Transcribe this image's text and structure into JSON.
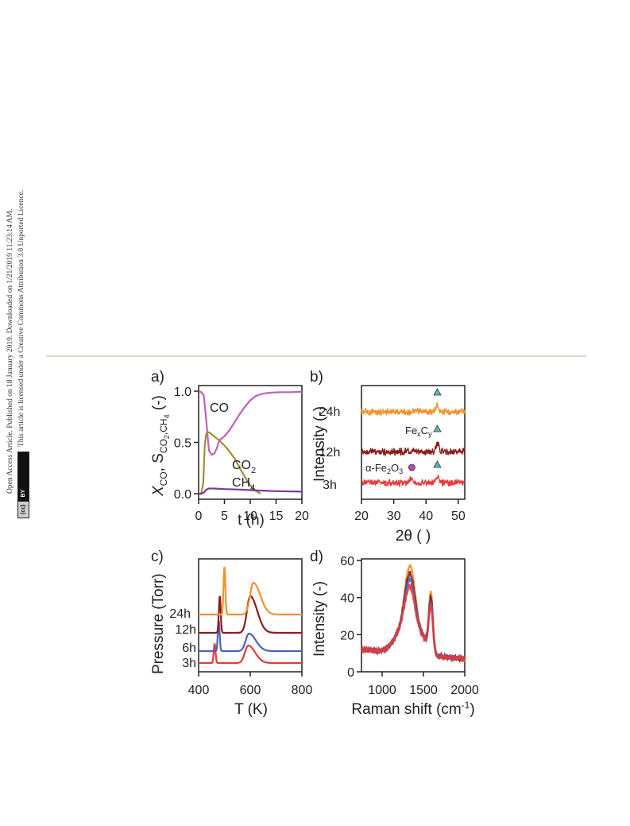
{
  "sidebar": {
    "line1": "Open Access Article. Published on 18 January 2019. Downloaded on 1/21/2019 11:23:14 AM.",
    "line2": "This article is licensed under a Creative Commons Attribution 3.0 Unported Licence.",
    "license_badge_left": "(cc)",
    "license_badge_right": "BY"
  },
  "colors": {
    "CO": "#c060b8",
    "CO2": "#a88a3a",
    "CH4": "#7a3a98",
    "h3": "#e43a3a",
    "h6": "#4a62b8",
    "h12": "#8a1c1c",
    "h24": "#f0922e",
    "xrd_marker_triangle": "#5fb8b8",
    "xrd_marker_circle": "#c04aa8"
  },
  "chart_data": [
    {
      "panel": "a)",
      "type": "line",
      "xlabel": "t (h)",
      "ylabel_main": "X",
      "ylabel_sub1": "CO",
      "ylabel_mid": ", S",
      "ylabel_sub2": "CO",
      "ylabel_sub2b": "2",
      "ylabel_sub2c": ",CH",
      "ylabel_sub2d": "4",
      "ylabel_end": " (-)",
      "xlim": [
        0,
        20
      ],
      "ylim": [
        0,
        1.0
      ],
      "xticks": [
        "0",
        "5",
        "10",
        "15",
        "20"
      ],
      "yticks": [
        "0.0",
        "0.5",
        "1.0"
      ],
      "labels": {
        "co": "CO",
        "co2": "CO",
        "co2_sub": "2",
        "ch4": "CH",
        "ch4_sub": "4"
      },
      "series": [
        {
          "name": "CO",
          "x": [
            0,
            0.5,
            1.0,
            1.5,
            2.0,
            2.5,
            3.0,
            3.5,
            4,
            5,
            6,
            7,
            8,
            9,
            10,
            11,
            12,
            13,
            14,
            16,
            18,
            20
          ],
          "y": [
            1.0,
            0.99,
            0.96,
            0.7,
            0.42,
            0.38,
            0.39,
            0.44,
            0.52,
            0.56,
            0.62,
            0.7,
            0.78,
            0.85,
            0.91,
            0.95,
            0.97,
            0.98,
            0.985,
            0.99,
            0.99,
            0.995
          ]
        },
        {
          "name": "CO2",
          "x": [
            0,
            0.5,
            0.9,
            1.2,
            1.5,
            2.0,
            2.5,
            3,
            4,
            5,
            6,
            7,
            8,
            9,
            10,
            11,
            12
          ],
          "y": [
            0.0,
            0.0,
            0.1,
            0.48,
            0.59,
            0.6,
            0.58,
            0.56,
            0.52,
            0.47,
            0.41,
            0.34,
            0.25,
            0.16,
            0.08,
            0.03,
            0.0
          ]
        },
        {
          "name": "CH4",
          "x": [
            0,
            0.5,
            1.0,
            1.5,
            2.0,
            3,
            5,
            8,
            10,
            12,
            15,
            20
          ],
          "y": [
            0.0,
            0.0,
            0.01,
            0.04,
            0.05,
            0.05,
            0.045,
            0.04,
            0.035,
            0.03,
            0.025,
            0.02
          ]
        }
      ]
    },
    {
      "panel": "b)",
      "type": "line",
      "xlabel": "2θ ( )",
      "ylabel": "Intensity (-)",
      "xlim": [
        20,
        52
      ],
      "xticks": [
        "20",
        "30",
        "40",
        "50"
      ],
      "series_labels": [
        "24h",
        "12h",
        "3h"
      ],
      "annotations": {
        "fexcy": "Fe",
        "fexcy_x": "x",
        "fexcy_c": "C",
        "fexcy_y": "y",
        "alpha": "α-Fe",
        "alpha_2": "2",
        "alpha_o": "O",
        "alpha_3": "3"
      },
      "series": [
        {
          "name": "24h",
          "peaks": [
            [
              43.5,
              0.9
            ]
          ]
        },
        {
          "name": "12h",
          "peaks": [
            [
              43.5,
              0.9
            ]
          ]
        },
        {
          "name": "3h",
          "peaks": [
            [
              35.6,
              0.6
            ],
            [
              43.5,
              0.8
            ]
          ]
        }
      ]
    },
    {
      "panel": "c)",
      "type": "line",
      "xlabel": "T (K)",
      "ylabel": "Pressure (Torr)",
      "xlim": [
        400,
        800
      ],
      "xticks": [
        "400",
        "600",
        "800"
      ],
      "series_labels": [
        "24h",
        "12h",
        "6h",
        "3h"
      ],
      "series": [
        {
          "name": "3h",
          "spike": 462,
          "peak": 592
        },
        {
          "name": "6h",
          "spike": 478,
          "peak": 595
        },
        {
          "name": "12h",
          "spike": 482,
          "peak": 600
        },
        {
          "name": "24h",
          "spike": 500,
          "peak": 612
        }
      ]
    },
    {
      "panel": "d)",
      "type": "line",
      "xlabel": "Raman shift (cm",
      "xlabel_sup": "-1",
      "xlabel_end": ")",
      "ylabel": "Intensity (-)",
      "xlim": [
        750,
        2000
      ],
      "ylim": [
        0,
        60
      ],
      "xticks": [
        "1000",
        "1500",
        "2000"
      ],
      "yticks": [
        "0",
        "20",
        "40",
        "60"
      ],
      "series": [
        {
          "name": "24h",
          "d_peak": 57,
          "g_peak": 54
        },
        {
          "name": "12h",
          "d_peak": 53,
          "g_peak": 51
        },
        {
          "name": "6h",
          "d_peak": 50,
          "g_peak": 49
        },
        {
          "name": "3h",
          "d_peak": 46,
          "g_peak": 47
        }
      ]
    }
  ]
}
